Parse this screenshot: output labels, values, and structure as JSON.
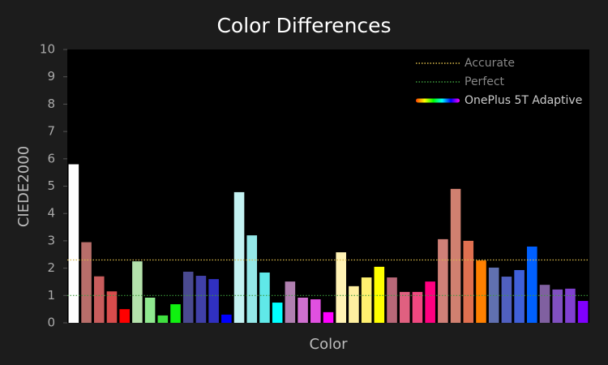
{
  "chart_data": {
    "type": "bar",
    "title": "Color Differences",
    "x_label": "Color",
    "y_label": "CIEDE2000",
    "ylim": [
      0,
      10
    ],
    "yticks": [
      0,
      1,
      2,
      3,
      4,
      5,
      6,
      7,
      8,
      9,
      10
    ],
    "legend": "upper right",
    "reference_lines": [
      {
        "name": "Accurate",
        "value": 2.3,
        "color": "#d8b848"
      },
      {
        "name": "Perfect",
        "value": 1,
        "color": "#3c9a3c"
      }
    ],
    "series": [
      {
        "name": "OnePlus 5T Adaptive",
        "values": [
          5.8,
          2.95,
          1.7,
          1.15,
          0.5,
          2.25,
          0.92,
          0.27,
          0.68,
          1.87,
          1.72,
          1.6,
          0.3,
          4.78,
          3.2,
          1.84,
          0.74,
          1.51,
          0.92,
          0.86,
          0.39,
          2.58,
          1.34,
          1.66,
          2.05,
          1.66,
          1.13,
          1.13,
          1.51,
          3.06,
          4.9,
          3.0,
          2.28,
          2.02,
          1.69,
          1.93,
          2.79,
          1.39,
          1.22,
          1.25,
          0.8
        ],
        "colors": [
          "#ffffff",
          "#b86e6a",
          "#c85c5c",
          "#d84c4c",
          "#ff0000",
          "#b4e2ac",
          "#90e890",
          "#40e040",
          "#10f010",
          "#4a4a90",
          "#4040a8",
          "#3030c0",
          "#0000ff",
          "#c4f2f2",
          "#94e8e8",
          "#60e8e8",
          "#00ffff",
          "#b080b0",
          "#d070d0",
          "#e050e0",
          "#ff00ff",
          "#fff2b4",
          "#fff0a0",
          "#fff070",
          "#ffff00",
          "#b86878",
          "#e06080",
          "#f04880",
          "#ff0080",
          "#d08078",
          "#d08070",
          "#e07050",
          "#ff8000",
          "#6070b0",
          "#5060c0",
          "#4060d8",
          "#0060ff",
          "#8060a0",
          "#8050c0",
          "#8040d0",
          "#8000ff"
        ]
      }
    ]
  }
}
